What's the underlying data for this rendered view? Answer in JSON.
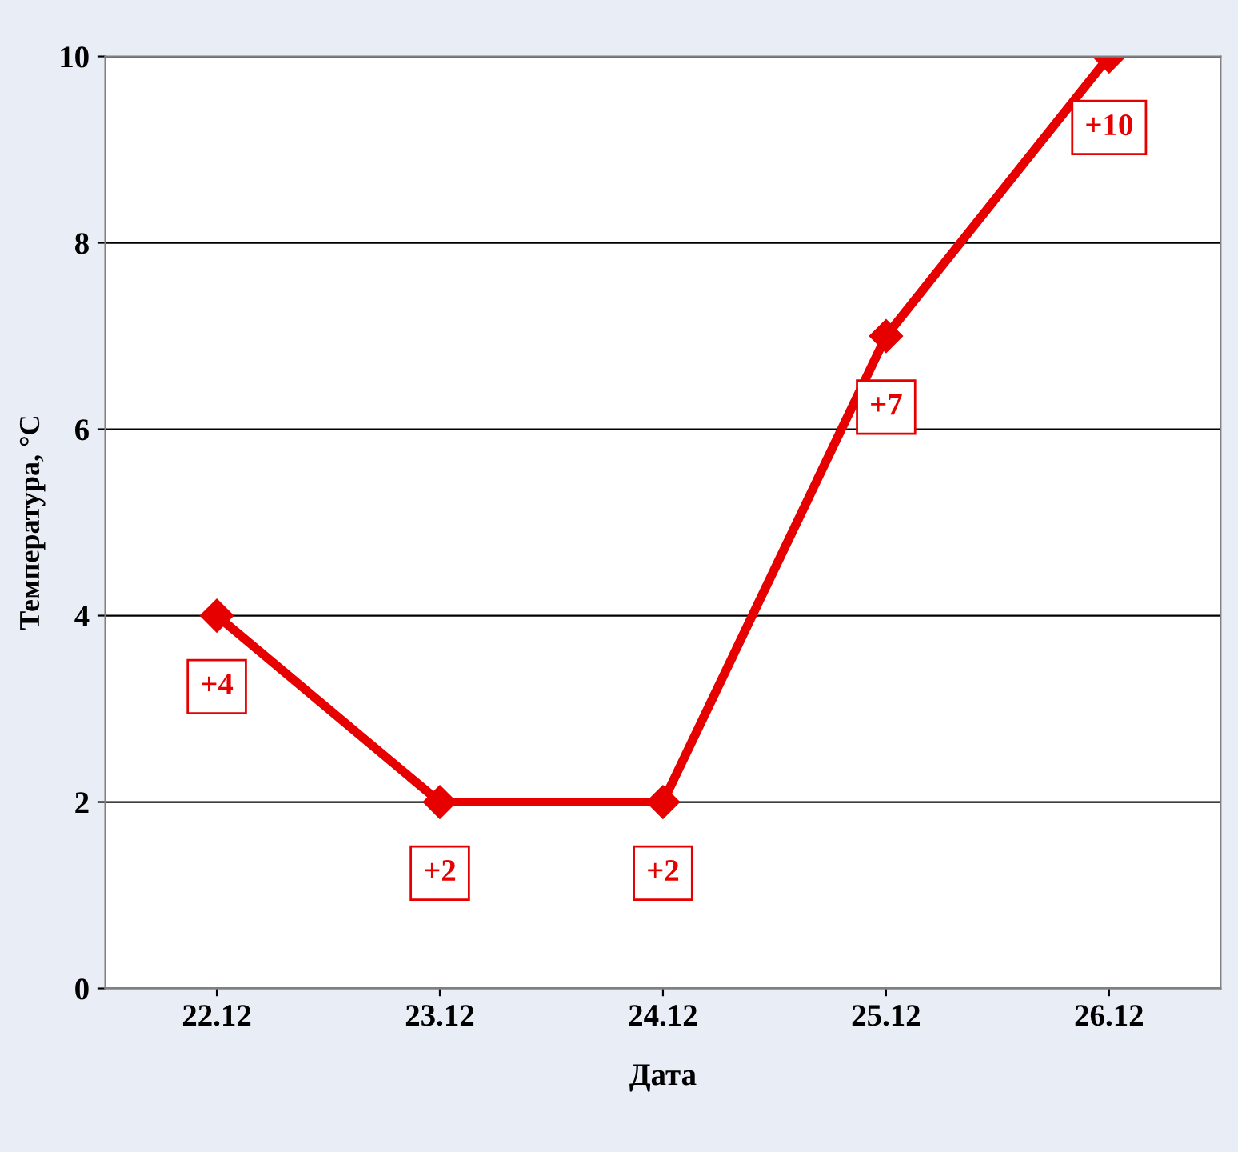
{
  "chart_data": {
    "type": "line",
    "xlabel": "Дата",
    "ylabel": "Температура, °С",
    "categories": [
      "22.12",
      "23.12",
      "24.12",
      "25.12",
      "26.12"
    ],
    "series": [
      {
        "color": "#e60000",
        "values": [
          4,
          2,
          2,
          7,
          10
        ],
        "value_labels": [
          "+4",
          "+2",
          "+2",
          "+7",
          "+10"
        ]
      }
    ],
    "ylim": [
      0,
      10
    ],
    "yticks": [
      0,
      2,
      4,
      6,
      8,
      10
    ],
    "grid": "y",
    "marker": "diamond",
    "line_style": "solid",
    "legend": false
  }
}
